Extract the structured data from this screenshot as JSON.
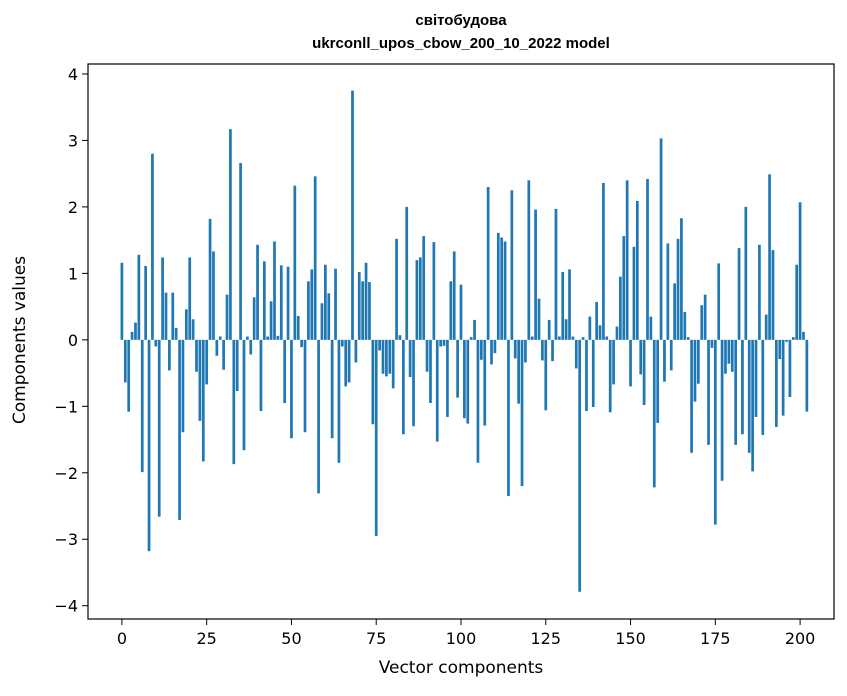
{
  "chart_data": {
    "type": "bar",
    "title": "світобудова",
    "subtitle": "ukrconll_upos_cbow_200_10_2022 model",
    "xlabel": "Vector components",
    "ylabel": "Components values",
    "xlim": [
      -10,
      210
    ],
    "ylim": [
      -4.2,
      4.15
    ],
    "xticks": [
      0,
      25,
      50,
      75,
      100,
      125,
      150,
      175,
      200
    ],
    "yticks": [
      -4,
      -3,
      -2,
      -1,
      0,
      1,
      2,
      3,
      4
    ],
    "bar_color": "#1f77b4",
    "grid": false,
    "values": [
      1.16,
      -0.64,
      -1.08,
      0.12,
      0.26,
      1.28,
      -1.99,
      1.11,
      -3.18,
      2.8,
      -0.1,
      -2.66,
      1.24,
      0.71,
      -0.46,
      0.71,
      0.18,
      -2.71,
      -1.39,
      0.46,
      1.24,
      0.31,
      -0.48,
      -1.22,
      -1.83,
      -0.67,
      1.82,
      1.33,
      -0.24,
      0.05,
      -0.45,
      0.68,
      3.17,
      -1.87,
      -0.77,
      2.66,
      -1.66,
      0.05,
      -0.22,
      0.64,
      1.43,
      -1.07,
      1.18,
      0.05,
      0.58,
      1.48,
      0.06,
      1.12,
      -0.95,
      1.1,
      -1.48,
      2.32,
      0.36,
      -0.11,
      -1.39,
      0.88,
      1.06,
      2.46,
      -2.31,
      0.55,
      1.13,
      0.7,
      -1.48,
      1.07,
      -1.85,
      -0.1,
      -0.7,
      -0.64,
      3.75,
      -0.34,
      1.02,
      0.88,
      1.16,
      0.87,
      -1.27,
      -2.95,
      -0.16,
      -0.51,
      -0.55,
      -0.51,
      -0.73,
      1.52,
      0.07,
      -1.42,
      2.0,
      -0.56,
      -1.3,
      1.2,
      1.24,
      1.56,
      -0.48,
      -0.95,
      1.47,
      -1.53,
      -0.1,
      -0.09,
      -1.16,
      0.88,
      1.33,
      -0.87,
      0.83,
      -1.18,
      -1.26,
      0.04,
      0.3,
      -1.85,
      -0.3,
      -1.29,
      2.3,
      -0.37,
      -0.2,
      1.61,
      1.54,
      1.48,
      -2.35,
      2.25,
      -0.28,
      -0.96,
      -2.2,
      -0.34,
      2.4,
      0.05,
      1.96,
      0.62,
      -0.31,
      -1.06,
      0.3,
      -0.32,
      1.97,
      0.05,
      1.02,
      0.31,
      1.06,
      0.05,
      -0.43,
      -3.79,
      0.04,
      -1.07,
      0.35,
      -1.01,
      0.57,
      0.22,
      2.36,
      0.05,
      -1.09,
      -0.67,
      0.2,
      0.95,
      1.56,
      2.4,
      -0.7,
      1.4,
      2.09,
      -0.52,
      -0.98,
      2.42,
      0.35,
      -2.22,
      -1.25,
      3.03,
      -0.63,
      1.45,
      -0.46,
      0.85,
      1.52,
      1.83,
      0.42,
      0.04,
      -1.7,
      -0.93,
      -0.66,
      0.52,
      0.68,
      -1.58,
      -0.12,
      -2.78,
      1.15,
      -2.12,
      -0.51,
      -0.36,
      -0.48,
      -1.58,
      1.38,
      -1.42,
      2.0,
      -1.7,
      -1.98,
      -1.16,
      1.43,
      -1.43,
      0.38,
      2.49,
      1.35,
      -1.31,
      -0.29,
      -1.14,
      -0.03,
      -0.86,
      0.04,
      1.13,
      2.07,
      0.12,
      -1.08
    ]
  }
}
